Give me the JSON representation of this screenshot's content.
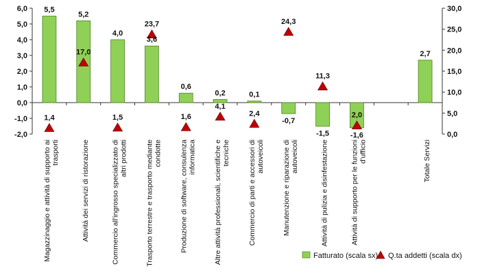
{
  "chart_data": {
    "type": "bar",
    "categories": [
      [
        "Magazzinaggio e attività di supporto ai",
        "trasporti"
      ],
      [
        "Attività dei servizi di ristorazione"
      ],
      [
        "Commercio all'ingrosso specializzato di",
        "altri prodotti"
      ],
      [
        "Trasporto terrestre e trasporto mediante",
        "condotte"
      ],
      [
        "Produzione di software, consulenza",
        "informatica"
      ],
      [
        "Altre attività professionali, scientifiche e",
        "tecniche"
      ],
      [
        "Commercio di parti e accessori di",
        "autoveicoli"
      ],
      [
        "Manutenzione e riparazione di",
        "autoveicoli"
      ],
      [
        "Attività di pulizia e disinfestazione"
      ],
      [
        "Attività di supporto per le funzioni",
        "d'ufficio"
      ],
      [
        ""
      ],
      [
        "Totale Servizi"
      ]
    ],
    "series": [
      {
        "name": "Fatturato (scala sx)",
        "axis": "left",
        "mark": "bar",
        "color": "#8fd156",
        "values": [
          5.5,
          5.2,
          4.0,
          3.6,
          0.6,
          0.2,
          0.1,
          -0.7,
          -1.5,
          -1.6,
          null,
          2.7
        ],
        "labels": [
          "5,5",
          "5,2",
          "4,0",
          "3,6",
          "0,6",
          "0,2",
          "0,1",
          "-0,7",
          "-1,5",
          "-1,6",
          "",
          "2,7"
        ]
      },
      {
        "name": "Q.ta addetti (scala dx)",
        "axis": "right",
        "mark": "triangle",
        "color": "#c00000",
        "values": [
          1.4,
          17.0,
          1.5,
          23.7,
          1.6,
          4.1,
          2.4,
          24.3,
          11.3,
          2.0,
          null,
          null
        ],
        "labels": [
          "1,4",
          "17,0",
          "1,5",
          "23,7",
          "1,6",
          "4,1",
          "2,4",
          "24,3",
          "11,3",
          "2,0",
          "",
          ""
        ]
      }
    ],
    "left_axis": {
      "range": [
        -2.0,
        6.0
      ],
      "ticks": [
        6.0,
        5.0,
        4.0,
        3.0,
        2.0,
        1.0,
        0.0,
        -1.0,
        -2.0
      ],
      "tick_labels": [
        "6,0",
        "5,0",
        "4,0",
        "3,0",
        "2,0",
        "1,0",
        "0,0",
        "-1,0",
        "-2,0"
      ]
    },
    "right_axis": {
      "range": [
        0.0,
        30.0
      ],
      "ticks": [
        30.0,
        25.0,
        20.0,
        15.0,
        10.0,
        5.0,
        0.0
      ],
      "tick_labels": [
        "30,0",
        "25,0",
        "20,0",
        "15,0",
        "10,0",
        "5,0",
        "0,0"
      ]
    },
    "grid": false,
    "legend_position": "bottom-right",
    "title": "",
    "xlabel": "",
    "ylabel": ""
  }
}
